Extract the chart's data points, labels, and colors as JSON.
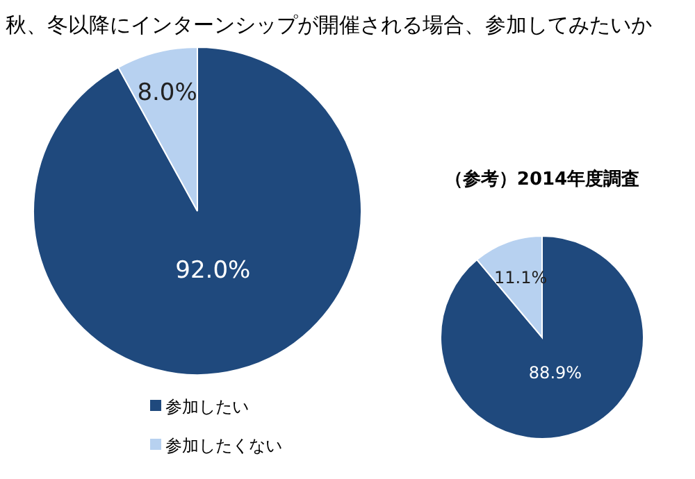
{
  "chart_data": [
    {
      "type": "pie",
      "title": "秋、冬以降にインターンシップが開催される場合、参加してみたいか",
      "categories": [
        "参加したい",
        "参加したくない"
      ],
      "values": [
        92.0,
        8.0
      ],
      "colors": [
        "#1f497d",
        "#b7d1f0"
      ],
      "value_labels": [
        "92.0%",
        "8.0%"
      ],
      "legend": "bottom"
    },
    {
      "type": "pie",
      "title": "（参考）2014年度調査",
      "values": [
        88.9,
        11.1
      ],
      "colors": [
        "#1f497d",
        "#b7d1f0"
      ],
      "value_labels": [
        "88.9%",
        "11.1%"
      ]
    }
  ]
}
